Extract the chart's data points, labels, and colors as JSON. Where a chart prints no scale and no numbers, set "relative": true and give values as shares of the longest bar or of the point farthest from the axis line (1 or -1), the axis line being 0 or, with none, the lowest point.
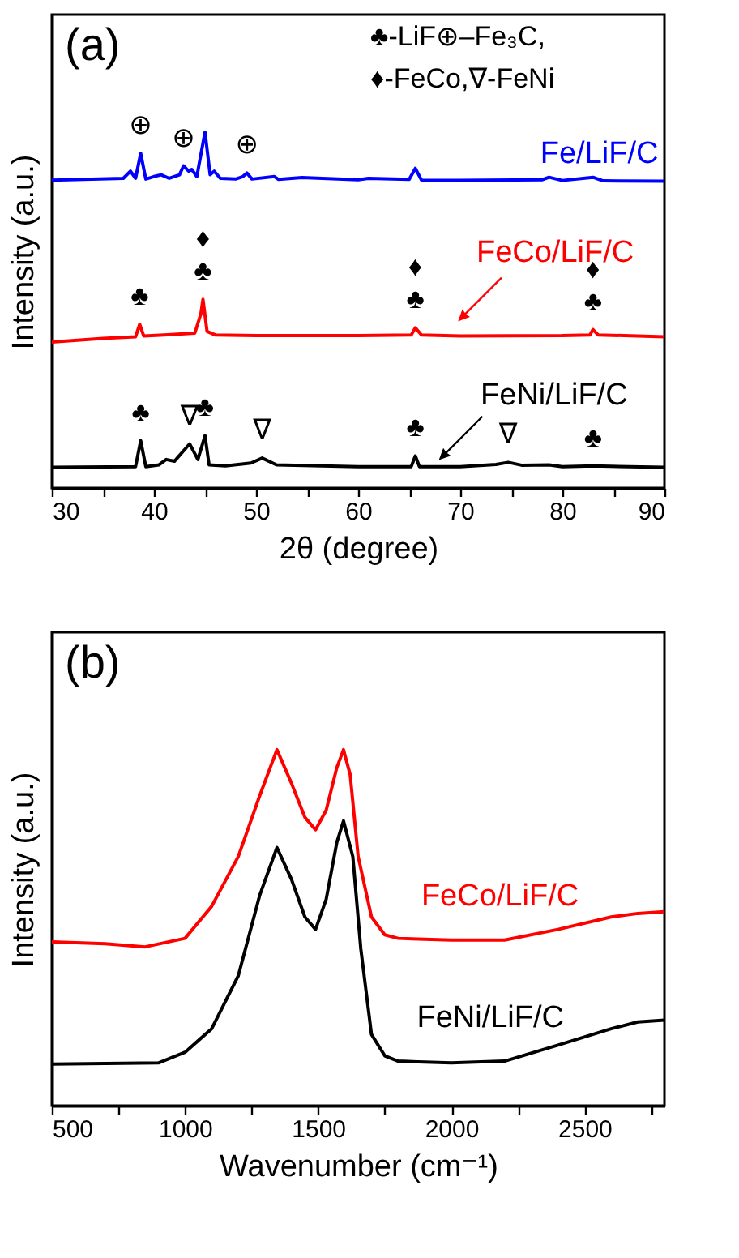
{
  "chart_data": [
    {
      "type": "line",
      "title": "(a)",
      "xlabel": "2θ  (degree)",
      "ylabel": "Intensity (a.u.)",
      "relative": true,
      "tick_labels": "x",
      "grid": false,
      "legend": false,
      "xlim": [
        30,
        90
      ],
      "xticks": [
        30,
        {
          "value": 35,
          "label": null
        },
        40,
        {
          "value": 45,
          "label": null
        },
        50,
        {
          "value": 55,
          "label": null
        },
        60,
        {
          "value": 65,
          "label": null
        },
        70,
        {
          "value": 75,
          "label": null
        },
        80,
        {
          "value": 85,
          "label": null
        },
        90
      ],
      "series": [
        {
          "name": "Fe/LiF/C",
          "color": "#0000ff",
          "x": [
            30,
            37,
            37.7,
            38.2,
            38.7,
            39.2,
            40,
            40.7,
            41.5,
            42.5,
            42.9,
            43.4,
            43.7,
            44.2,
            45,
            45.5,
            45.9,
            46.5,
            48,
            48.7,
            49.1,
            49.6,
            51.8,
            52.2,
            54.5,
            60,
            61,
            65,
            65.6,
            66.2,
            70,
            78,
            78.7,
            80,
            83,
            84,
            90
          ],
          "values": [
            0.865,
            0.87,
            0.89,
            0.87,
            0.94,
            0.868,
            0.875,
            0.88,
            0.87,
            0.88,
            0.905,
            0.89,
            0.895,
            0.875,
            1.0,
            0.88,
            0.89,
            0.87,
            0.868,
            0.875,
            0.885,
            0.868,
            0.875,
            0.867,
            0.872,
            0.866,
            0.87,
            0.867,
            0.898,
            0.865,
            0.864,
            0.866,
            0.873,
            0.864,
            0.873,
            0.863,
            0.862
          ]
        },
        {
          "name": "FeCo/LiF/C",
          "color": "#ff0000",
          "x": [
            30,
            35,
            38.2,
            38.6,
            39,
            41,
            44,
            44.6,
            44.8,
            45.2,
            46,
            50,
            60,
            65.2,
            65.6,
            66.2,
            70,
            80,
            82.7,
            83,
            83.5,
            90
          ],
          "values": [
            0.41,
            0.42,
            0.425,
            0.46,
            0.427,
            0.43,
            0.435,
            0.49,
            0.53,
            0.44,
            0.43,
            0.428,
            0.428,
            0.43,
            0.45,
            0.43,
            0.427,
            0.428,
            0.43,
            0.445,
            0.43,
            0.425
          ]
        },
        {
          "name": "FeNi/LiF/C",
          "color": "#000000",
          "x": [
            30,
            38.2,
            38.7,
            39.2,
            40.5,
            41.2,
            42,
            43.5,
            44.3,
            45,
            45.4,
            47,
            49.5,
            50.6,
            52,
            60,
            65.2,
            65.6,
            66,
            70,
            73.5,
            74.7,
            76,
            78.7,
            80,
            83,
            90
          ],
          "values": [
            0.058,
            0.06,
            0.133,
            0.06,
            0.065,
            0.08,
            0.075,
            0.124,
            0.08,
            0.147,
            0.065,
            0.062,
            0.07,
            0.084,
            0.065,
            0.06,
            0.06,
            0.09,
            0.06,
            0.06,
            0.066,
            0.072,
            0.064,
            0.065,
            0.06,
            0.062,
            0.058
          ]
        }
      ],
      "annotations": [
        "♣-LiF⊕–Fe₃C,",
        "♦-FeCo,∇-FeNi",
        {
          "text": "⊕",
          "x": 38.7,
          "y": 0.94
        },
        {
          "text": "⊕",
          "x": 42.9,
          "y": 0.905
        },
        {
          "text": "⊕",
          "x": 49.1,
          "y": 0.885
        },
        {
          "text": "♣",
          "x": 38.6,
          "y": 0.46
        },
        {
          "text": "♣",
          "x": 44.8,
          "y": 0.53
        },
        {
          "text": "♦",
          "x": 44.8,
          "y": 0.53
        },
        {
          "text": "♣",
          "x": 65.6,
          "y": 0.45
        },
        {
          "text": "♦",
          "x": 65.6,
          "y": 0.45
        },
        {
          "text": "♣",
          "x": 83,
          "y": 0.445
        },
        {
          "text": "♦",
          "x": 83,
          "y": 0.445
        },
        {
          "text": "♣",
          "x": 38.7,
          "y": 0.133
        },
        {
          "text": "∇",
          "x": 43.5,
          "y": 0.124
        },
        {
          "text": "♣",
          "x": 45,
          "y": 0.147
        },
        {
          "text": "∇",
          "x": 50.6,
          "y": 0.084
        },
        {
          "text": "♣",
          "x": 65.6,
          "y": 0.09
        },
        {
          "text": "∇",
          "x": 74.7,
          "y": 0.072
        },
        {
          "text": "♣",
          "x": 83,
          "y": 0.062
        }
      ]
    },
    {
      "type": "line",
      "title": "(b)",
      "xlabel": "Wavenumber (cm⁻¹)",
      "ylabel": "Intensity (a.u.)",
      "relative": true,
      "tick_labels": "x",
      "grid": false,
      "legend": false,
      "xlim": [
        500,
        2800
      ],
      "xticks": [
        500,
        {
          "value": 750,
          "label": null
        },
        1000,
        {
          "value": 1250,
          "label": null
        },
        1500,
        {
          "value": 1750,
          "label": null
        },
        2000,
        {
          "value": 2250,
          "label": null
        },
        2500,
        {
          "value": 2750,
          "label": null
        }
      ],
      "series": [
        {
          "name": "FeCo/LiF/C",
          "color": "#ff0000",
          "x": [
            500,
            700,
            850,
            1000,
            1100,
            1200,
            1280,
            1345,
            1400,
            1450,
            1490,
            1530,
            1570,
            1595,
            1620,
            1650,
            1700,
            1750,
            1800,
            2000,
            2200,
            2400,
            2600,
            2700,
            2800
          ],
          "values": [
            0.46,
            0.455,
            0.446,
            0.47,
            0.56,
            0.7,
            0.87,
            1.0,
            0.905,
            0.81,
            0.775,
            0.83,
            0.95,
            1.0,
            0.93,
            0.7,
            0.53,
            0.48,
            0.47,
            0.465,
            0.465,
            0.495,
            0.53,
            0.54,
            0.545
          ]
        },
        {
          "name": "FeNi/LiF/C",
          "color": "#000000",
          "x": [
            500,
            900,
            1000,
            1100,
            1200,
            1280,
            1345,
            1400,
            1450,
            1490,
            1530,
            1570,
            1595,
            1630,
            1660,
            1700,
            1750,
            1800,
            2000,
            2200,
            2400,
            2600,
            2700,
            2800
          ],
          "values": [
            0.117,
            0.12,
            0.15,
            0.216,
            0.365,
            0.59,
            0.725,
            0.635,
            0.53,
            0.495,
            0.58,
            0.74,
            0.8,
            0.7,
            0.44,
            0.2,
            0.14,
            0.125,
            0.12,
            0.125,
            0.17,
            0.216,
            0.235,
            0.24
          ]
        }
      ]
    }
  ]
}
